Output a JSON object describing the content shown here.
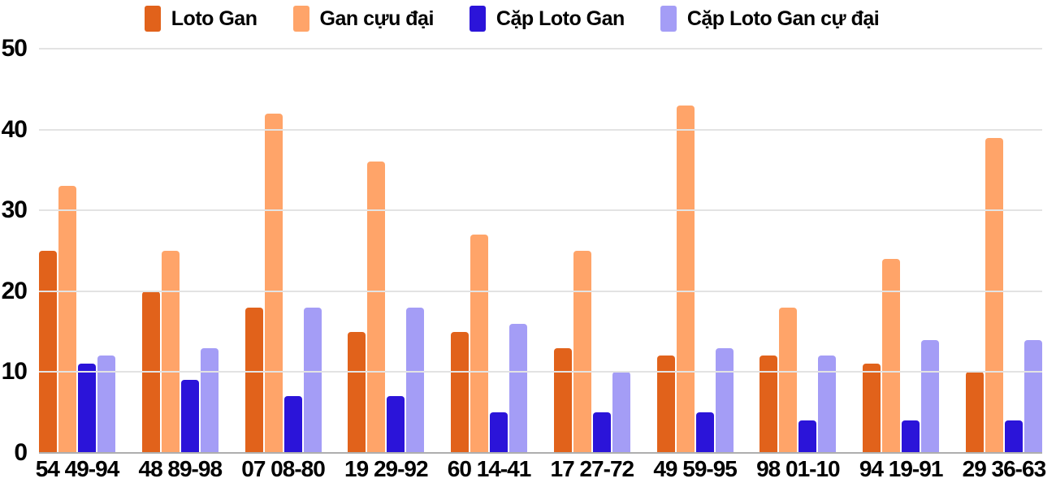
{
  "colors": {
    "background": "#ffffff",
    "gridline": "#e3e3e3",
    "axis_line": "#aeaeae",
    "text": "#000000"
  },
  "chart_data": {
    "type": "bar",
    "title": "",
    "xlabel": "",
    "ylabel": "",
    "grid": true,
    "legend_position": "top",
    "ylim": [
      0,
      50
    ],
    "yticks": [
      0,
      10,
      20,
      30,
      40,
      50
    ],
    "categories": [
      "54 49-94",
      "48 89-98",
      "07 08-80",
      "19 29-92",
      "60 14-41",
      "17 27-72",
      "49 59-95",
      "98 01-10",
      "94 19-91",
      "29 36-63"
    ],
    "series": [
      {
        "name": "Loto Gan",
        "color": "#e1621b",
        "values": [
          25,
          20,
          18,
          15,
          15,
          13,
          12,
          12,
          11,
          10
        ]
      },
      {
        "name": "Gan cựu đại",
        "color": "#ffa469",
        "values": [
          33,
          25,
          42,
          36,
          27,
          25,
          43,
          18,
          24,
          39
        ]
      },
      {
        "name": "Cặp Loto Gan",
        "color": "#2b14d9",
        "values": [
          11,
          9,
          7,
          7,
          5,
          5,
          5,
          4,
          4,
          4
        ]
      },
      {
        "name": "Cặp Loto Gan cự đại",
        "color": "#a49df6",
        "values": [
          12,
          13,
          18,
          18,
          16,
          10,
          13,
          12,
          14,
          14
        ]
      }
    ]
  }
}
